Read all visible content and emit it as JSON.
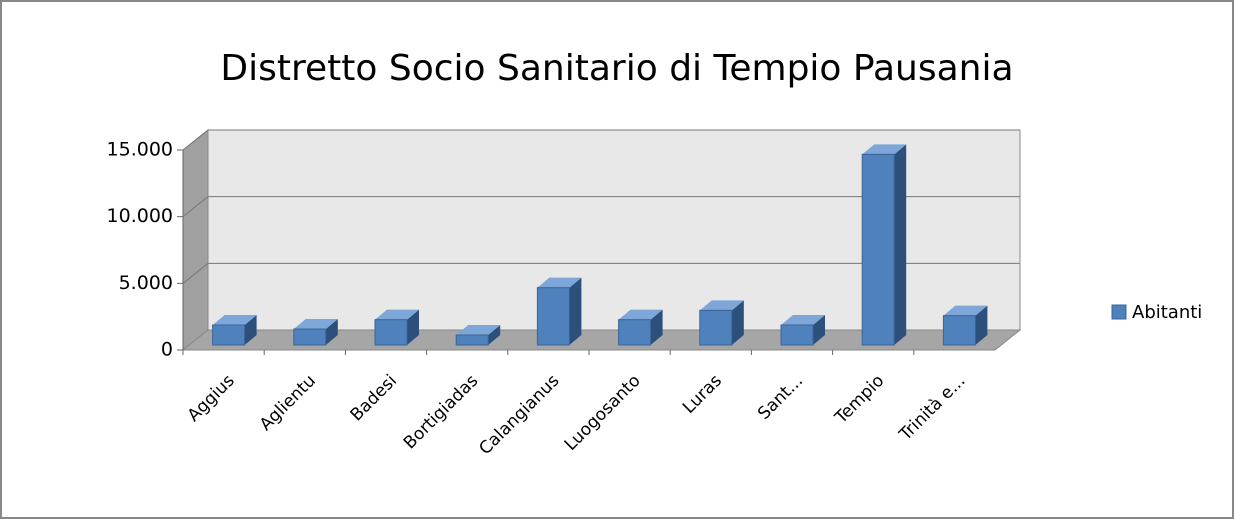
{
  "chart_data": {
    "type": "bar3d",
    "title": "Distretto Socio Sanitario di Tempio Pausania",
    "categories": [
      "Aggius",
      "Aglientu",
      "Badesi",
      "Bortigiadas",
      "Calangianus",
      "Luogosanto",
      "Luras",
      "Sant...",
      "Tempio",
      "Trinità e..."
    ],
    "series": [
      {
        "name": "Abitanti",
        "color": "#4f81bd",
        "values": [
          1500,
          1200,
          1900,
          750,
          4300,
          1900,
          2600,
          1500,
          14300,
          2200
        ]
      }
    ],
    "ylim": [
      0,
      15000
    ],
    "yticks": [
      0,
      {
        "value": 5000,
        "label": "5.000"
      },
      {
        "value": 10000,
        "label": "10.000"
      },
      {
        "value": 15000,
        "label": "15.000"
      }
    ],
    "grid": true,
    "legend": "right"
  }
}
